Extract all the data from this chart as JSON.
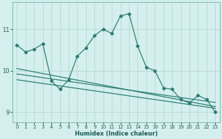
{
  "xlabel": "Humidex (Indice chaleur)",
  "bg_color": "#d4efed",
  "grid_color": "#b8dbd8",
  "line_color": "#2a7d74",
  "xlim": [
    -0.5,
    23.5
  ],
  "ylim": [
    8.75,
    11.65
  ],
  "yticks": [
    9,
    10,
    11
  ],
  "xticks": [
    0,
    1,
    2,
    3,
    4,
    5,
    6,
    7,
    8,
    9,
    10,
    11,
    12,
    13,
    14,
    15,
    16,
    17,
    18,
    19,
    20,
    21,
    22,
    23
  ],
  "line1_x": [
    0,
    1,
    2,
    3,
    4,
    5,
    6,
    7,
    8,
    9,
    10,
    11,
    12,
    13,
    14,
    15,
    16,
    17,
    18,
    19,
    20,
    21,
    22,
    23
  ],
  "line1_y": [
    10.62,
    10.45,
    10.52,
    10.65,
    9.75,
    9.55,
    9.78,
    10.35,
    10.55,
    10.85,
    11.0,
    10.9,
    11.32,
    11.38,
    10.6,
    10.08,
    10.0,
    9.58,
    9.55,
    9.3,
    9.22,
    9.4,
    9.3,
    9.0
  ],
  "line2_x": [
    0,
    1,
    2,
    3,
    4,
    5,
    6,
    7,
    8,
    9,
    10,
    11,
    12,
    13,
    14,
    15,
    16,
    17,
    18,
    19,
    20,
    21,
    22,
    23
  ],
  "line2_y": [
    10.05,
    10.01,
    9.97,
    9.93,
    9.89,
    9.85,
    9.81,
    9.77,
    9.73,
    9.69,
    9.65,
    9.61,
    9.57,
    9.53,
    9.49,
    9.45,
    9.41,
    9.37,
    9.33,
    9.29,
    9.25,
    9.21,
    9.17,
    9.13
  ],
  "line3_x": [
    0,
    1,
    2,
    3,
    4,
    5,
    6,
    7,
    8,
    9,
    10,
    11,
    12,
    13,
    14,
    15,
    16,
    17,
    18,
    19,
    20,
    21,
    22,
    23
  ],
  "line3_y": [
    9.92,
    9.89,
    9.86,
    9.83,
    9.8,
    9.77,
    9.74,
    9.71,
    9.68,
    9.65,
    9.62,
    9.59,
    9.56,
    9.53,
    9.5,
    9.47,
    9.44,
    9.41,
    9.38,
    9.35,
    9.32,
    9.29,
    9.26,
    9.23
  ],
  "line4_x": [
    0,
    1,
    2,
    3,
    4,
    5,
    6,
    7,
    8,
    9,
    10,
    11,
    12,
    13,
    14,
    15,
    16,
    17,
    18,
    19,
    20,
    21,
    22,
    23
  ],
  "line4_y": [
    9.78,
    9.75,
    9.72,
    9.69,
    9.66,
    9.63,
    9.6,
    9.57,
    9.54,
    9.51,
    9.48,
    9.45,
    9.42,
    9.39,
    9.36,
    9.33,
    9.3,
    9.27,
    9.24,
    9.21,
    9.18,
    9.15,
    9.12,
    9.09
  ]
}
